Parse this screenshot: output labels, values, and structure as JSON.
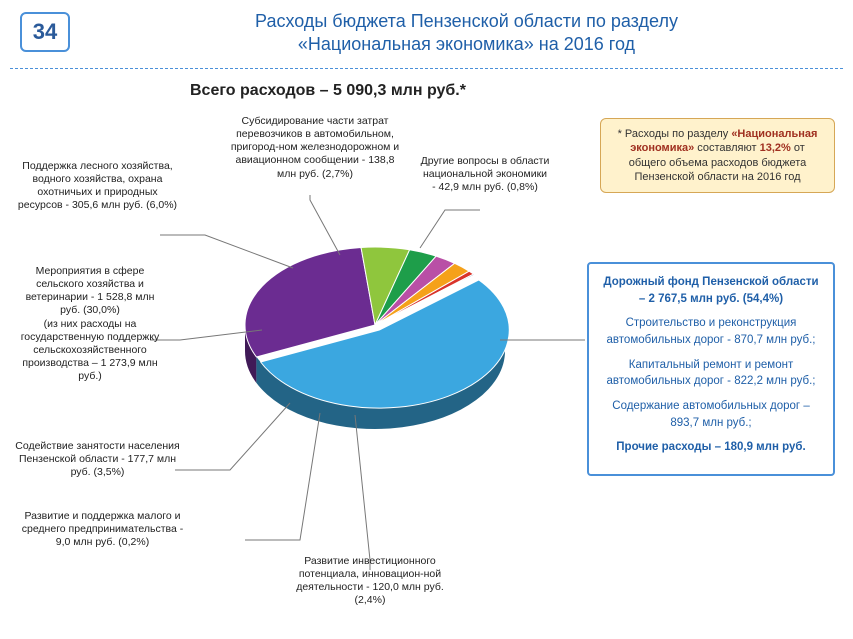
{
  "page_number": "34",
  "title_line1": "Расходы бюджета Пензенской области по разделу",
  "title_line2": "«Национальная экономика» на 2016 год",
  "subtitle": "Всего расходов – 5 090,3 млн руб.*",
  "callout": {
    "prefix": "* Расходы по разделу ",
    "bold1": "«Национальная экономика»",
    "mid": " составляют ",
    "bold2": "13,2%",
    "suffix": " от общего объема расходов бюджета Пензенской области на 2016 год"
  },
  "pie": {
    "type": "pie-3d",
    "background_color": "#ffffff",
    "slices": [
      {
        "label": "road-fund",
        "value": 54.4,
        "color": "#3ba7e0"
      },
      {
        "label": "agriculture",
        "value": 30.0,
        "color": "#6b2c91"
      },
      {
        "label": "forestry",
        "value": 6.0,
        "color": "#8fc63d"
      },
      {
        "label": "employment",
        "value": 3.5,
        "color": "#1e9e4a"
      },
      {
        "label": "transport-sub",
        "value": 2.7,
        "color": "#b94fa6"
      },
      {
        "label": "investment",
        "value": 2.4,
        "color": "#f5a11a"
      },
      {
        "label": "other-econ",
        "value": 0.8,
        "color": "#d9342b"
      },
      {
        "label": "sme",
        "value": 0.2,
        "color": "#2e5b94"
      }
    ]
  },
  "labels": {
    "transport_sub": "Субсидирование части затрат перевозчиков в автомобильном, пригород-ном железнодорожном и авиационном сообщении - 138,8 млн руб. (2,7%)",
    "other_econ": "Другие вопросы в области национальной экономики - 42,9 млн руб. (0,8%)",
    "forestry": "Поддержка лесного хозяйства, водного хозяйства, охрана охотничьих и природных ресурсов - 305,6 млн руб. (6,0%)",
    "agriculture_main": "Мероприятия в сфере сельского хозяйства и ветеринарии - 1 528,8 млн руб. (30,0%)",
    "agriculture_sub": "(из них расходы на государственную поддержку сельскохозяйственного производства – 1 273,9 млн руб.)",
    "employment": "Содействие занятости населения Пензенской области - 177,7 млн руб. (3,5%)",
    "sme": "Развитие и поддержка малого и среднего предпринимательства - 9,0 млн руб. (0,2%)",
    "investment": "Развитие инвестиционного потенциала, инновацион-ной деятельности - 120,0 млн руб. (2,4%)"
  },
  "detail": {
    "header": "Дорожный фонд Пензенской области – 2 767,5 млн руб. (54,4%)",
    "item1": "Строительство и реконструкция автомобильных дорог - 870,7 млн руб.;",
    "item2": "Капитальный ремонт и ремонт автомобильных дорог - 822,2 млн руб.;",
    "item3": "Содержание автомобильных дорог – 893,7 млн руб.;",
    "item4": "Прочие расходы – 180,9 млн руб."
  }
}
